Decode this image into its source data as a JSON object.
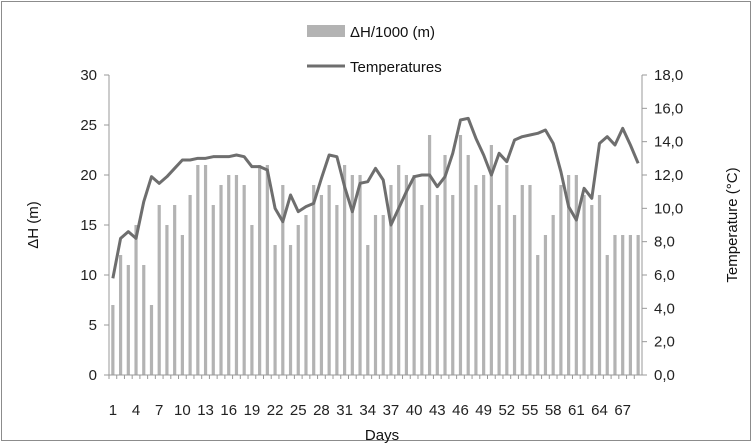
{
  "chart_data": {
    "type": "bar",
    "xlabel": "Days",
    "ylabel": "ΔH (m)",
    "y2label": "Temperature (°C)",
    "ylim": [
      0,
      30
    ],
    "y2lim": [
      0,
      18
    ],
    "yticks": [
      "0",
      "5",
      "10",
      "15",
      "20",
      "25",
      "30"
    ],
    "y2ticks": [
      "0,0",
      "2,0",
      "4,0",
      "6,0",
      "8,0",
      "10,0",
      "12,0",
      "14,0",
      "16,0",
      "18,0"
    ],
    "xticks": [
      "1",
      "4",
      "7",
      "10",
      "13",
      "16",
      "19",
      "22",
      "25",
      "28",
      "31",
      "34",
      "37",
      "40",
      "43",
      "46",
      "49",
      "52",
      "55",
      "58",
      "61",
      "64",
      "67"
    ],
    "grid": false,
    "legend_position": "top-center",
    "colors": {
      "bar": "#b3b3b3",
      "line": "#6e6e6e"
    },
    "days": [
      1,
      2,
      3,
      4,
      5,
      6,
      7,
      8,
      9,
      10,
      11,
      12,
      13,
      14,
      15,
      16,
      17,
      18,
      19,
      20,
      21,
      22,
      23,
      24,
      25,
      26,
      27,
      28,
      29,
      30,
      31,
      32,
      33,
      34,
      35,
      36,
      37,
      38,
      39,
      40,
      41,
      42,
      43,
      44,
      45,
      46,
      47,
      48,
      49,
      50,
      51,
      52,
      53,
      54,
      55,
      56,
      57,
      58,
      59,
      60,
      61,
      62,
      63,
      64,
      65,
      66,
      67,
      68,
      69
    ],
    "series": [
      {
        "name": "ΔH/1000 (m)",
        "kind": "bar",
        "axis": "left",
        "values": [
          7,
          12,
          11,
          15,
          11,
          7,
          17,
          15,
          17,
          14,
          18,
          21,
          21,
          17,
          19,
          20,
          20,
          19,
          15,
          21,
          21,
          13,
          19,
          13,
          15,
          16,
          19,
          18,
          19,
          17,
          21,
          20,
          20,
          13,
          16,
          16,
          19,
          21,
          20,
          20,
          17,
          24,
          18,
          22,
          18,
          24,
          22,
          19,
          20,
          23,
          17,
          21,
          16,
          19,
          19,
          12,
          14,
          16,
          19,
          20,
          20,
          18,
          17,
          18,
          12,
          14,
          14,
          14,
          14
        ]
      },
      {
        "name": "Temperatures",
        "kind": "line",
        "axis": "right",
        "values": [
          5.8,
          8.2,
          8.6,
          8.2,
          10.4,
          11.9,
          11.5,
          11.9,
          12.4,
          12.9,
          12.9,
          13.0,
          13.0,
          13.1,
          13.1,
          13.1,
          13.2,
          13.1,
          12.5,
          12.5,
          12.3,
          10.0,
          9.2,
          10.8,
          9.8,
          10.1,
          10.3,
          11.8,
          13.2,
          13.1,
          11.3,
          9.8,
          11.5,
          11.6,
          12.4,
          11.7,
          9.0,
          10.0,
          11.0,
          11.9,
          12.0,
          12.0,
          11.3,
          11.9,
          13.3,
          15.3,
          15.4,
          14.2,
          13.2,
          12.0,
          13.3,
          12.8,
          14.1,
          14.3,
          14.4,
          14.5,
          14.7,
          13.9,
          12.2,
          10.1,
          9.3,
          11.2,
          10.6,
          13.9,
          14.3,
          13.8,
          14.8,
          13.8,
          12.7
        ]
      }
    ]
  }
}
